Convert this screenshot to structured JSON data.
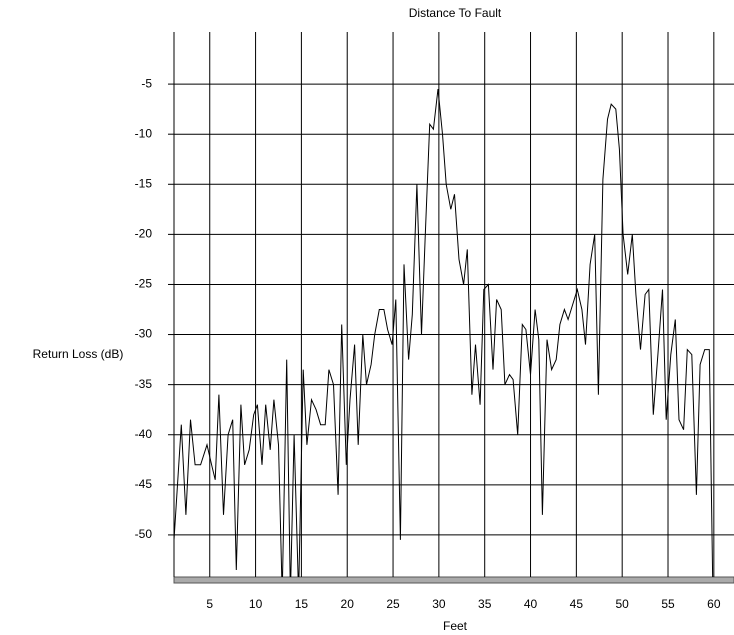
{
  "chart_data": {
    "type": "line",
    "title": "Distance To Fault",
    "x_label": "Feet",
    "y_label": "Return Loss (dB)",
    "x": [
      1.1,
      1.9,
      2.4,
      2.9,
      3.4,
      4.0,
      4.7,
      5.2,
      5.6,
      6.0,
      6.5,
      7.0,
      7.5,
      7.9,
      8.4,
      8.8,
      9.3,
      9.8,
      10.2,
      10.7,
      11.1,
      11.6,
      12.0,
      12.5,
      12.9,
      13.4,
      13.8,
      14.2,
      14.7,
      15.2,
      15.6,
      16.1,
      16.6,
      17.1,
      17.6,
      18.0,
      18.5,
      19.0,
      19.4,
      19.9,
      20.3,
      20.8,
      21.2,
      21.7,
      22.1,
      22.6,
      23.0,
      23.5,
      24.0,
      24.4,
      24.9,
      25.3,
      25.8,
      26.2,
      26.7,
      27.1,
      27.6,
      28.1,
      28.5,
      29.0,
      29.4,
      29.9,
      30.4,
      30.8,
      31.3,
      31.7,
      32.2,
      32.7,
      33.1,
      33.6,
      34.0,
      34.5,
      34.9,
      35.4,
      35.9,
      36.3,
      36.8,
      37.2,
      37.7,
      38.1,
      38.6,
      39.1,
      39.5,
      40.0,
      40.5,
      40.9,
      41.3,
      41.8,
      42.3,
      42.8,
      43.2,
      43.7,
      44.1,
      44.6,
      45.1,
      45.6,
      46.0,
      46.5,
      47.0,
      47.4,
      47.9,
      48.4,
      48.8,
      49.3,
      49.7,
      50.1,
      50.6,
      51.1,
      51.5,
      52.0,
      52.5,
      52.9,
      53.4,
      53.9,
      54.4,
      54.8,
      55.3,
      55.8,
      56.2,
      56.7,
      57.1,
      57.6,
      58.1,
      58.5,
      59.0,
      59.5,
      59.9
    ],
    "values": [
      -50.5,
      -39,
      -48,
      -38.5,
      -43,
      -43,
      -41,
      -43,
      -44.5,
      -36,
      -48,
      -40,
      -38.5,
      -53.5,
      -37,
      -43,
      -41.5,
      -38,
      -37,
      -43,
      -37,
      -41.5,
      -36.5,
      -41,
      -56,
      -32.5,
      -56,
      -40,
      -56,
      -33.5,
      -41,
      -36.5,
      -37.5,
      -39,
      -39,
      -33.5,
      -35,
      -46,
      -29,
      -43,
      -36.5,
      -31,
      -41,
      -30,
      -35,
      -33,
      -30,
      -27.5,
      -27.5,
      -29.5,
      -31,
      -26.5,
      -50.5,
      -23,
      -32.5,
      -28,
      -15,
      -30,
      -20.5,
      -9,
      -9.5,
      -5.5,
      -10,
      -15,
      -17.5,
      -16,
      -22.5,
      -25,
      -21.5,
      -36,
      -31,
      -37,
      -25.5,
      -25,
      -33.5,
      -26.5,
      -27.5,
      -35,
      -34,
      -34.5,
      -40,
      -29,
      -29.5,
      -34,
      -27.5,
      -30.5,
      -48,
      -30.5,
      -33.5,
      -32.5,
      -29,
      -27.5,
      -28.5,
      -27,
      -25.5,
      -27.5,
      -31,
      -23,
      -20,
      -36,
      -14.5,
      -8.5,
      -7,
      -7.5,
      -11.5,
      -20,
      -24,
      -20,
      -26,
      -31.5,
      -26,
      -25.5,
      -38,
      -32,
      -25.5,
      -38.5,
      -32,
      -28.5,
      -38.5,
      -39.5,
      -31.5,
      -32,
      -46,
      -33,
      -31.5,
      -31.5,
      -56
    ],
    "color": "#000000",
    "xlim": [
      1.1,
      62.2
    ],
    "ylim": [
      -54.2,
      0.2
    ],
    "xticks": [
      5,
      10,
      15,
      20,
      25,
      30,
      35,
      40,
      45,
      50,
      55,
      60
    ],
    "yticks": [
      -50,
      -45,
      -40,
      -35,
      -30,
      -25,
      -20,
      -15,
      -10,
      -5
    ],
    "grid": true
  }
}
